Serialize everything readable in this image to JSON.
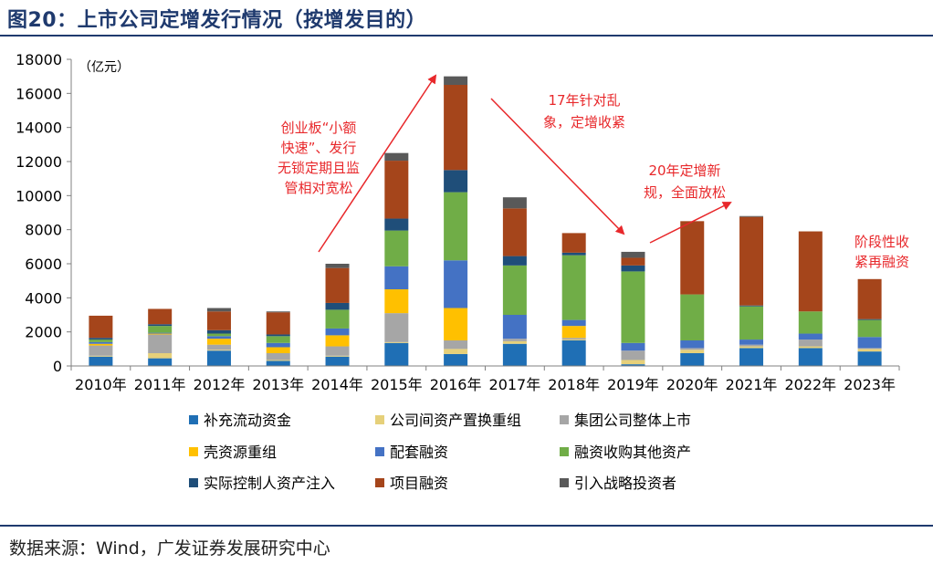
{
  "title": "图20：上市公司定增发行情况（按增发目的）",
  "source": "数据来源：Wind，广发证券发展研究中心",
  "chart_data": {
    "type": "bar",
    "stacked": true,
    "unit_label": "（亿元）",
    "ylim": [
      0,
      18000
    ],
    "yticks": [
      0,
      2000,
      4000,
      6000,
      8000,
      10000,
      12000,
      14000,
      16000,
      18000
    ],
    "categories": [
      "2010年",
      "2011年",
      "2012年",
      "2013年",
      "2014年",
      "2015年",
      "2016年",
      "2017年",
      "2018年",
      "2019年",
      "2020年",
      "2021年",
      "2022年",
      "2023年"
    ],
    "series": [
      {
        "name": "补充流动资金",
        "color": "#1f6fb5",
        "values": [
          550,
          450,
          900,
          300,
          550,
          1350,
          700,
          1300,
          1500,
          100,
          750,
          1050,
          1050,
          850
        ]
      },
      {
        "name": "公司间资产置换重组",
        "color": "#e6d07a",
        "values": [
          50,
          300,
          50,
          50,
          50,
          50,
          300,
          150,
          50,
          250,
          200,
          100,
          100,
          150
        ]
      },
      {
        "name": "集团公司整体上市",
        "color": "#a6a6a6",
        "values": [
          600,
          1100,
          300,
          400,
          550,
          1700,
          500,
          150,
          100,
          550,
          100,
          100,
          400,
          50
        ]
      },
      {
        "name": "壳资源重组",
        "color": "#ffc000",
        "values": [
          100,
          50,
          350,
          350,
          650,
          1400,
          1900,
          0,
          700,
          0,
          0,
          0,
          0,
          0
        ]
      },
      {
        "name": "配套融资",
        "color": "#4472c4",
        "values": [
          100,
          50,
          150,
          250,
          400,
          1350,
          2800,
          1400,
          350,
          450,
          450,
          300,
          350,
          650
        ]
      },
      {
        "name": "融资收购其他资产",
        "color": "#70ad47",
        "values": [
          150,
          400,
          150,
          400,
          1100,
          2100,
          4000,
          2900,
          3800,
          4200,
          2700,
          1950,
          1300,
          1000
        ]
      },
      {
        "name": "实际控制人资产注入",
        "color": "#1f4e79",
        "values": [
          100,
          100,
          200,
          100,
          400,
          700,
          1300,
          550,
          150,
          350,
          0,
          50,
          0,
          50
        ]
      },
      {
        "name": "项目融资",
        "color": "#a5451b",
        "values": [
          1300,
          900,
          1100,
          1300,
          2050,
          3400,
          5000,
          2800,
          1150,
          450,
          4300,
          5200,
          4700,
          2350
        ]
      },
      {
        "name": "引入战略投资者",
        "color": "#595959",
        "values": [
          0,
          0,
          200,
          50,
          250,
          450,
          500,
          650,
          0,
          350,
          0,
          50,
          0,
          0
        ]
      }
    ],
    "annotations": [
      {
        "lines": [
          "创业板“小额",
          "快速”、发行",
          "无锁定期且监",
          "管相对宽松"
        ]
      },
      {
        "lines": [
          "17年针对乱",
          "象，定增收紧"
        ]
      },
      {
        "lines": [
          "20年定增新",
          "规，全面放松"
        ]
      },
      {
        "lines": [
          "阶段性收",
          "紧再融资"
        ]
      }
    ],
    "legend_placement": "bottom"
  }
}
